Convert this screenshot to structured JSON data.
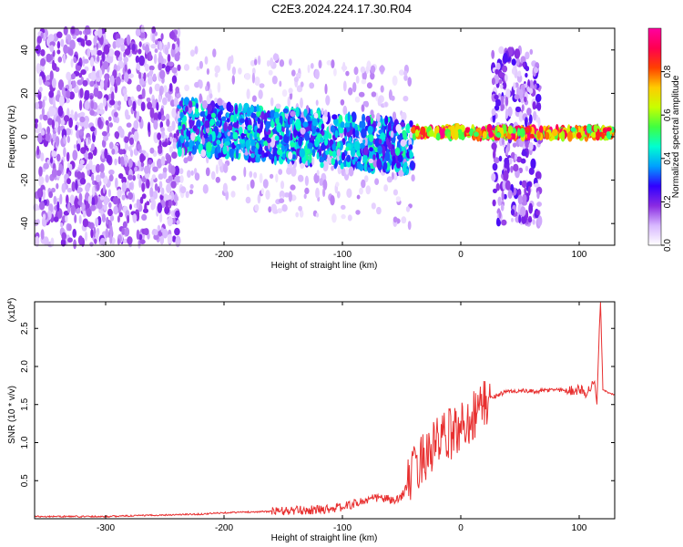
{
  "title": "C2E3.2024.224.17.30.R04",
  "chart_data": [
    {
      "type": "heatmap",
      "xlabel": "Height of straight line (km)",
      "ylabel": "Frequency (Hz)",
      "xlim": [
        -360,
        130
      ],
      "ylim": [
        -50,
        50
      ],
      "xticks": [
        -300,
        -200,
        -100,
        0,
        100
      ],
      "yticks": [
        -40,
        -20,
        0,
        20,
        40
      ],
      "grid": false,
      "colorbar": {
        "label": "Normalized spectral amplitude",
        "range": [
          0,
          1
        ],
        "ticks": [
          "0.0",
          "0.2",
          "0.4",
          "0.6",
          "0.8"
        ],
        "tick_values": [
          0,
          0.2,
          0.4,
          0.6,
          0.8
        ],
        "colormap": [
          "#ffffff",
          "#d8b8ff",
          "#8a2be2",
          "#3000ff",
          "#00a0ff",
          "#00ffd0",
          "#40ff40",
          "#c8ff00",
          "#ffcc00",
          "#ff4000",
          "#ff0050",
          "#ff00a0"
        ]
      },
      "regions": [
        {
          "x": [
            -360,
            -238
          ],
          "freq_spread": 50,
          "amplitude": [
            0.05,
            0.2
          ],
          "description_free": true
        },
        {
          "x": [
            -238,
            -40
          ],
          "freq_center_from": 5,
          "freq_center_to": -5,
          "freq_spread": 12,
          "amplitude": [
            0.2,
            0.5
          ]
        },
        {
          "x": [
            -40,
            130
          ],
          "freq_center": 2,
          "freq_spread": 2,
          "amplitude": [
            0.5,
            1.0
          ]
        },
        {
          "x": [
            27,
            67
          ],
          "freq_spread": 40,
          "amplitude": [
            0.05,
            0.25
          ]
        }
      ]
    },
    {
      "type": "line",
      "xlabel": "Height of straight line (km)",
      "ylabel": "SNR (10 * v/v)",
      "y_multiplier": "(x10",
      "y_multiplier_exp": "4",
      "y_multiplier_close": ")",
      "xlim": [
        -360,
        130
      ],
      "ylim": [
        0,
        2.85
      ],
      "xticks": [
        -300,
        -200,
        -100,
        0,
        100
      ],
      "yticks": [
        0.5,
        1.0,
        1.5,
        2.0,
        2.5
      ],
      "grid": false,
      "series": [
        {
          "color": "#e83030",
          "x": [
            -360,
            -300,
            -250,
            -220,
            -200,
            -150,
            -120,
            -100,
            -90,
            -80,
            -70,
            -60,
            -55,
            -50,
            -45,
            -40,
            -35,
            -30,
            -25,
            -20,
            -15,
            -10,
            -5,
            0,
            5,
            10,
            15,
            20,
            25,
            30,
            35,
            40,
            50,
            60,
            70,
            80,
            90,
            100,
            105,
            110,
            113,
            115,
            117,
            118,
            120,
            125,
            130
          ],
          "y": [
            0.03,
            0.03,
            0.05,
            0.06,
            0.08,
            0.1,
            0.12,
            0.15,
            0.2,
            0.24,
            0.28,
            0.25,
            0.22,
            0.3,
            0.45,
            0.6,
            0.75,
            0.85,
            0.9,
            1.0,
            1.05,
            1.1,
            1.15,
            1.2,
            1.28,
            1.35,
            1.45,
            1.52,
            1.58,
            1.62,
            1.65,
            1.67,
            1.68,
            1.67,
            1.68,
            1.7,
            1.68,
            1.7,
            1.65,
            1.72,
            1.8,
            1.5,
            2.5,
            2.85,
            1.7,
            1.65,
            1.63
          ]
        }
      ]
    }
  ]
}
